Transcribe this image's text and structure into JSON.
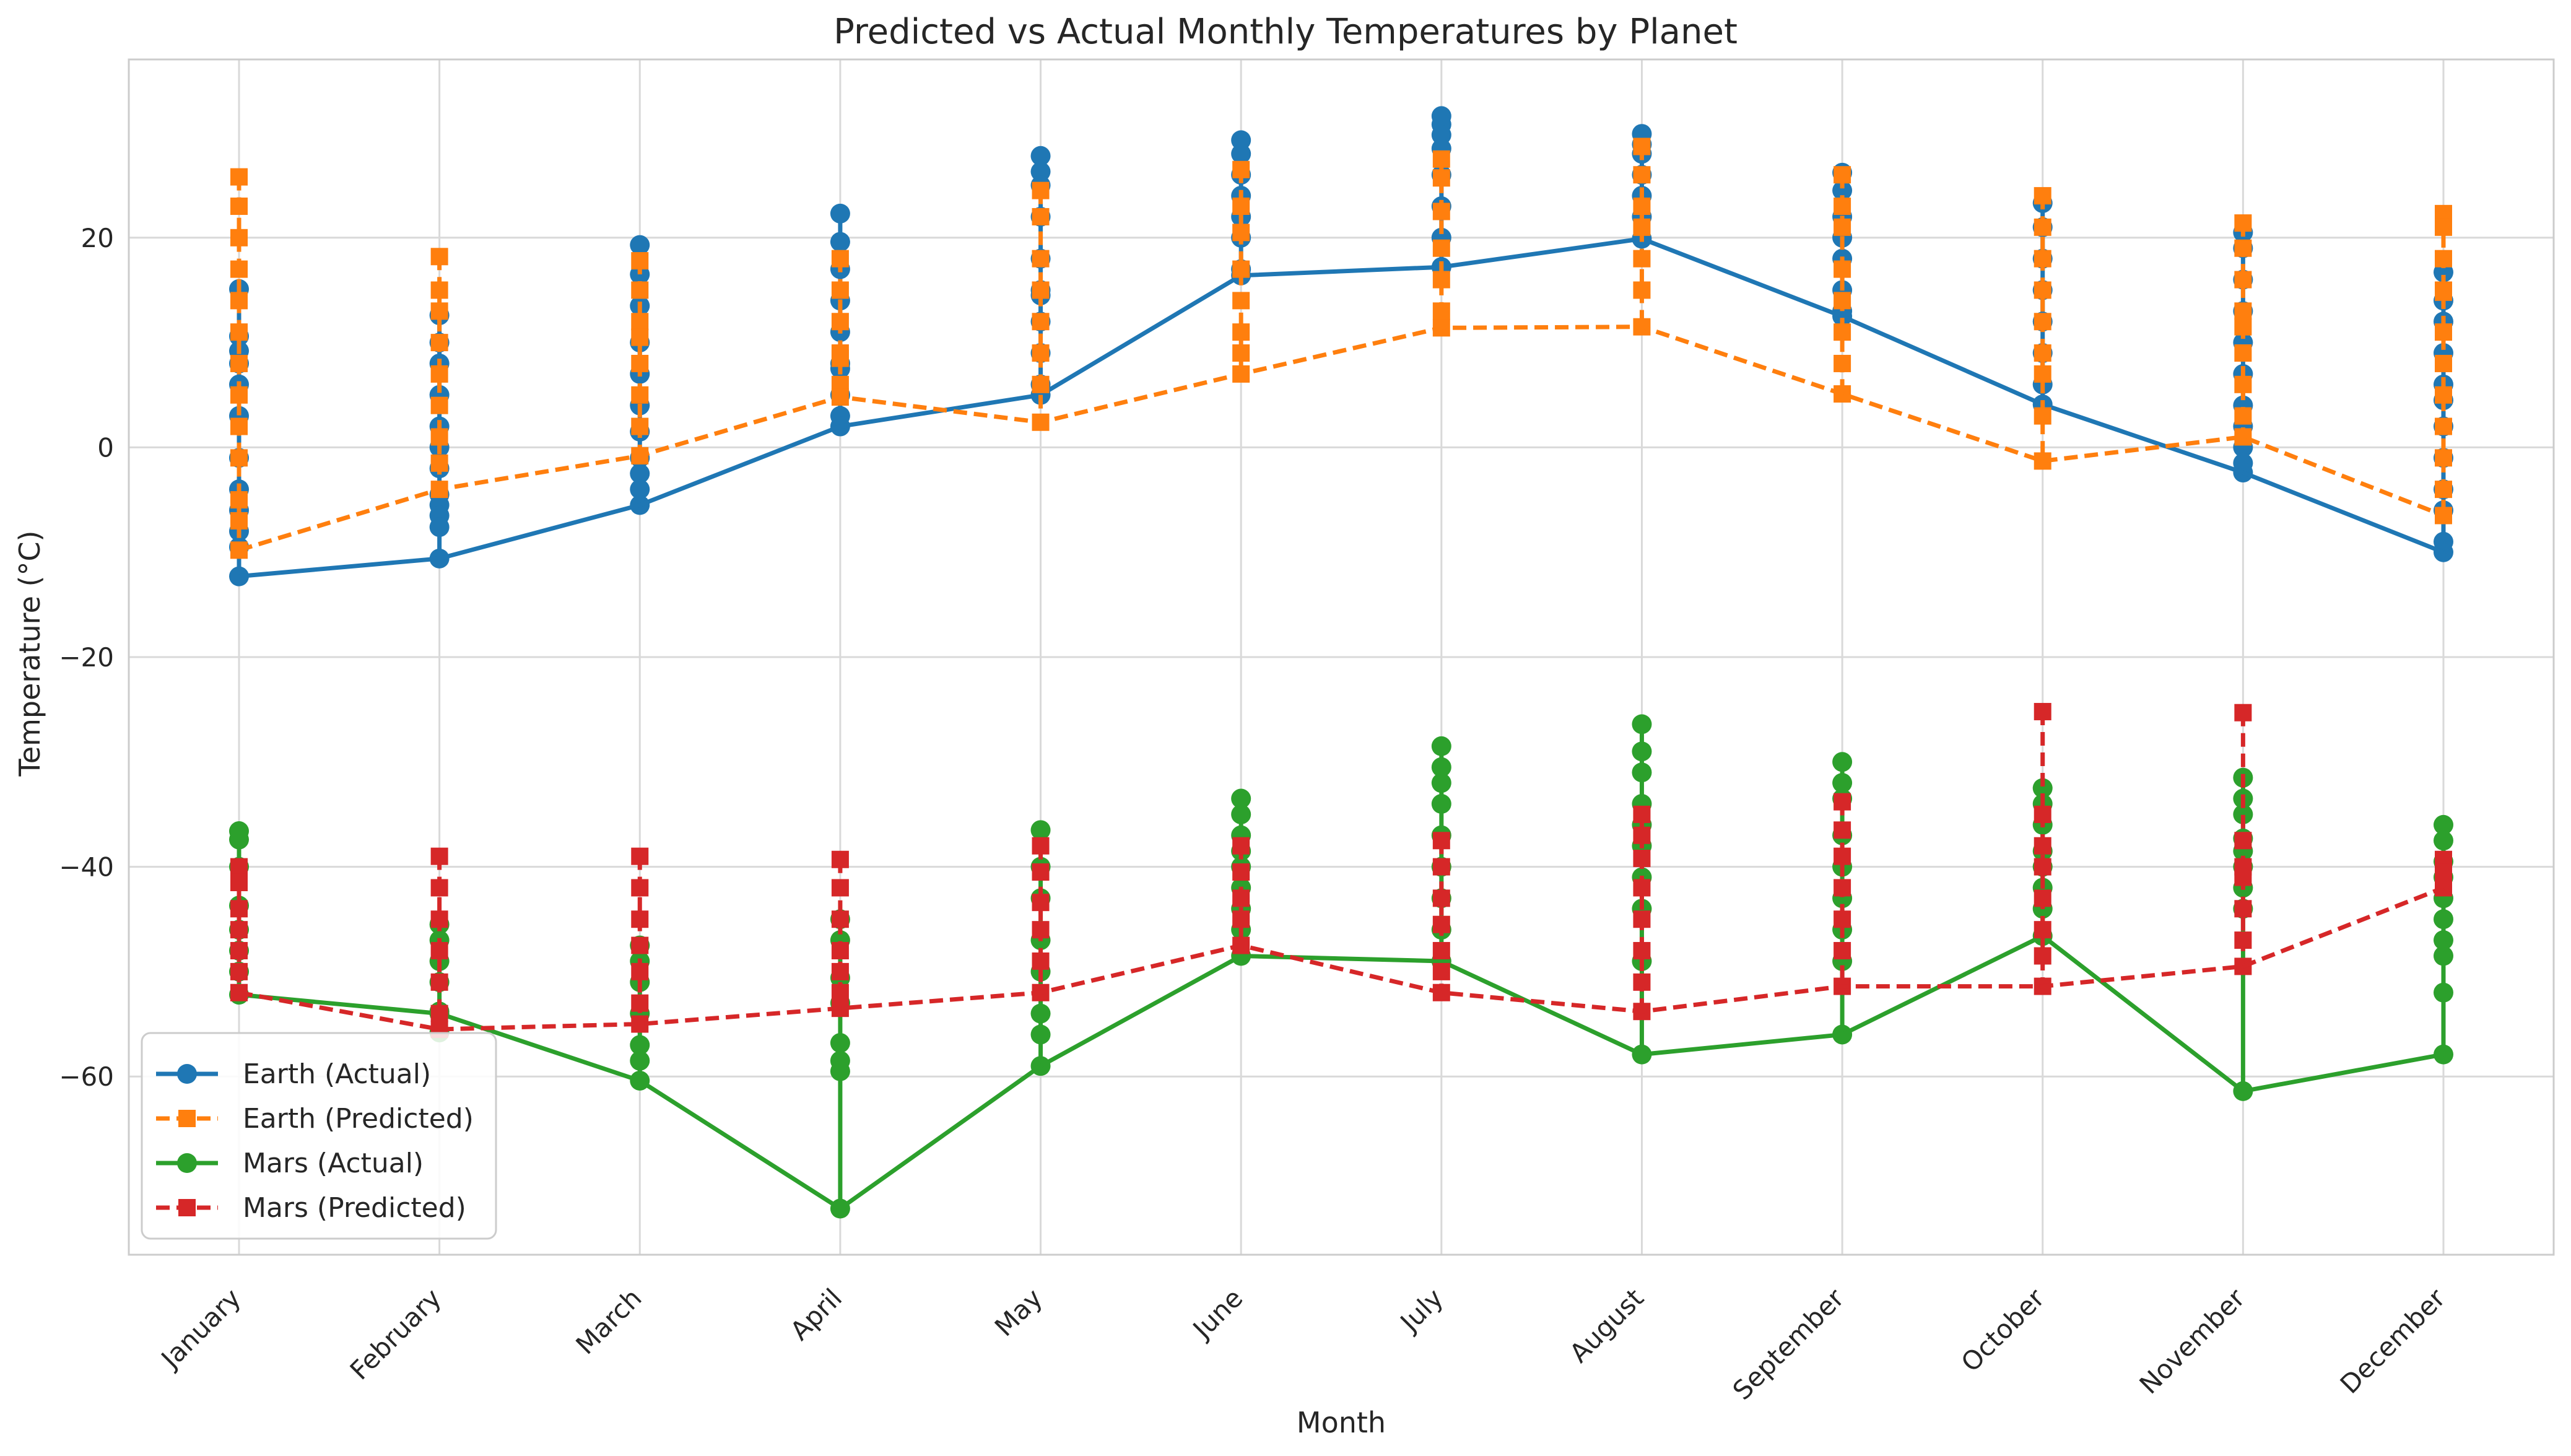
{
  "chart_data": {
    "type": "line",
    "title": "Predicted vs Actual Monthly Temperatures by Planet",
    "xlabel": "Month",
    "ylabel": "Temperature (°C)",
    "categories": [
      "January",
      "February",
      "March",
      "April",
      "May",
      "June",
      "July",
      "August",
      "September",
      "October",
      "November",
      "December"
    ],
    "ylim": [
      -77,
      37
    ],
    "yticks": [
      20,
      0,
      -20,
      -40,
      -60
    ],
    "grid": true,
    "legend_position": "lower-left",
    "series": [
      {
        "name": "Earth (Actual)",
        "color": "#1f77b4",
        "linestyle": "solid",
        "marker": "circle",
        "values": [
          [
            15.1,
            10.6,
            9.2,
            8.0,
            6.0,
            3.0,
            -1.0,
            -4.0,
            -6.0,
            -8.0,
            -9.5,
            -12.3
          ],
          [
            12.6,
            10.0,
            8.0,
            5.0,
            2.0,
            0.0,
            -2.0,
            -4.5,
            -5.5,
            -6.5,
            -7.6,
            -10.6
          ],
          [
            19.3,
            16.5,
            13.5,
            10.0,
            7.0,
            4.0,
            1.5,
            -1.0,
            -2.5,
            -4.0,
            -5.5
          ],
          [
            22.3,
            19.6,
            17.0,
            14.0,
            11.0,
            8.0,
            7.5,
            5.0,
            3.0,
            2.0
          ],
          [
            27.8,
            26.3,
            25.0,
            22.0,
            18.0,
            15.0,
            14.5,
            12.0,
            9.0,
            6.0,
            5.0
          ],
          [
            29.3,
            28.0,
            26.0,
            24.0,
            22.0,
            20.0,
            17.0,
            16.4
          ],
          [
            31.6,
            30.8,
            29.8,
            28.5,
            26.0,
            23.0,
            20.0,
            17.2
          ],
          [
            29.9,
            28.9,
            28.0,
            26.0,
            24.0,
            22.0,
            19.9
          ],
          [
            26.2,
            24.5,
            22.0,
            20.0,
            18.0,
            15.0,
            13.0,
            12.5
          ],
          [
            23.3,
            21.0,
            18.0,
            15.0,
            12.0,
            9.0,
            6.0,
            4.1
          ],
          [
            20.5,
            19.0,
            16.0,
            13.0,
            10.0,
            7.0,
            4.0,
            2.0,
            0.0,
            -1.5,
            -2.4
          ],
          [
            16.7,
            14.0,
            12.0,
            9.0,
            6.0,
            4.5,
            2.0,
            -1.0,
            -4.0,
            -6.0,
            -9.0,
            -10.0
          ]
        ]
      },
      {
        "name": "Earth (Predicted)",
        "color": "#ff7f0e",
        "linestyle": "dashed",
        "marker": "square",
        "values": [
          [
            25.8,
            23.0,
            20.0,
            17.0,
            14.0,
            11.0,
            8.0,
            5.0,
            2.0,
            -1.0,
            -5.0,
            -7.0,
            -9.8
          ],
          [
            18.2,
            15.0,
            13.0,
            10.0,
            7.0,
            4.0,
            1.0,
            -1.5,
            -4.0
          ],
          [
            17.8,
            15.0,
            12.0,
            10.5,
            8.0,
            5.0,
            2.0,
            -0.8
          ],
          [
            18.0,
            15.0,
            12.0,
            9.0,
            8.5,
            6.0,
            4.8
          ],
          [
            24.5,
            22.0,
            18.0,
            15.0,
            12.0,
            9.0,
            6.0,
            2.4
          ],
          [
            26.5,
            23.0,
            20.5,
            17.0,
            14.0,
            11.0,
            9.0,
            7.0
          ],
          [
            27.5,
            25.7,
            22.5,
            19.0,
            16.0,
            13.0,
            11.4
          ],
          [
            28.7,
            26.0,
            23.0,
            21.0,
            18.0,
            15.0,
            11.5
          ],
          [
            26.0,
            23.0,
            21.0,
            17.0,
            14.0,
            11.0,
            8.0,
            5.1
          ],
          [
            24.0,
            21.0,
            18.0,
            15.0,
            12.0,
            9.0,
            7.0,
            3.0,
            -1.3
          ],
          [
            21.4,
            19.0,
            16.0,
            13.0,
            11.5,
            9.0,
            6.0,
            3.0,
            1.0
          ],
          [
            22.3,
            21.0,
            18.0,
            15.0,
            14.8,
            11.0,
            8.0,
            5.0,
            2.0,
            -1.0,
            -4.0,
            -6.5
          ]
        ]
      },
      {
        "name": "Mars (Actual)",
        "color": "#2ca02c",
        "linestyle": "solid",
        "marker": "circle",
        "values": [
          [
            -36.6,
            -37.4,
            -40.0,
            -43.7,
            -46.0,
            -48.0,
            -50.0,
            -52.2
          ],
          [
            -45.5,
            -47.0,
            -49.0,
            -51.0,
            -53.8,
            -55.8,
            -54.0
          ],
          [
            -47.5,
            -49.0,
            -51.0,
            -54.0,
            -57.0,
            -58.5,
            -60.4
          ],
          [
            -45.0,
            -47.0,
            -50.6,
            -53.0,
            -56.8,
            -58.5,
            -59.5,
            -72.6
          ],
          [
            -36.5,
            -40.0,
            -43.0,
            -47.0,
            -50.0,
            -54.0,
            -56.0,
            -59.0
          ],
          [
            -33.5,
            -35.0,
            -37.0,
            -38.5,
            -40.0,
            -42.0,
            -44.0,
            -46.0,
            -48.5
          ],
          [
            -28.5,
            -30.5,
            -32.0,
            -34.0,
            -37.0,
            -40.0,
            -43.0,
            -46.0,
            -49.0
          ],
          [
            -26.4,
            -29.0,
            -31.0,
            -34.0,
            -36.0,
            -38.0,
            -41.0,
            -44.0,
            -49.0,
            -57.9
          ],
          [
            -30.0,
            -32.0,
            -33.5,
            -37.0,
            -40.0,
            -43.0,
            -46.0,
            -49.0,
            -56.0
          ],
          [
            -32.5,
            -34.0,
            -36.0,
            -38.5,
            -40.0,
            -42.0,
            -44.0,
            -46.6
          ],
          [
            -31.5,
            -33.5,
            -35.0,
            -37.3,
            -38.5,
            -40.0,
            -42.0,
            -44.0,
            -61.4
          ],
          [
            -36.0,
            -37.5,
            -39.5,
            -41.0,
            -43.0,
            -45.0,
            -47.0,
            -48.5,
            -52.0,
            -57.9
          ]
        ]
      },
      {
        "name": "Mars (Predicted)",
        "color": "#d62728",
        "linestyle": "dashed",
        "marker": "square",
        "values": [
          [
            -40.0,
            -41.5,
            -44.0,
            -46.0,
            -48.0,
            -50.0,
            -52.0
          ],
          [
            -39.0,
            -42.0,
            -45.0,
            -48.0,
            -51.0,
            -54.0,
            -55.5
          ],
          [
            -39.0,
            -42.0,
            -45.0,
            -47.5,
            -50.0,
            -53.0,
            -55.0
          ],
          [
            -39.3,
            -42.0,
            -45.0,
            -48.0,
            -50.0,
            -52.0,
            -53.5
          ],
          [
            -38.0,
            -40.5,
            -43.4,
            -46.0,
            -49.0,
            -52.0
          ],
          [
            -38.0,
            -40.5,
            -43.0,
            -45.0,
            -47.5
          ],
          [
            -37.5,
            -40.0,
            -43.0,
            -45.5,
            -48.0,
            -50.0,
            -52.0
          ],
          [
            -35.0,
            -37.0,
            -39.2,
            -42.0,
            -45.0,
            -48.0,
            -51.0,
            -53.8
          ],
          [
            -33.8,
            -36.5,
            -39.0,
            -42.0,
            -45.0,
            -48.0,
            -51.4
          ],
          [
            -25.2,
            -35.0,
            -38.0,
            -40.0,
            -43.0,
            -46.0,
            -48.5,
            -51.4
          ],
          [
            -25.3,
            -37.5,
            -40.0,
            -41.0,
            -44.0,
            -47.0,
            -49.5
          ],
          [
            -39.3,
            -40.5,
            -42.0
          ]
        ]
      }
    ]
  }
}
